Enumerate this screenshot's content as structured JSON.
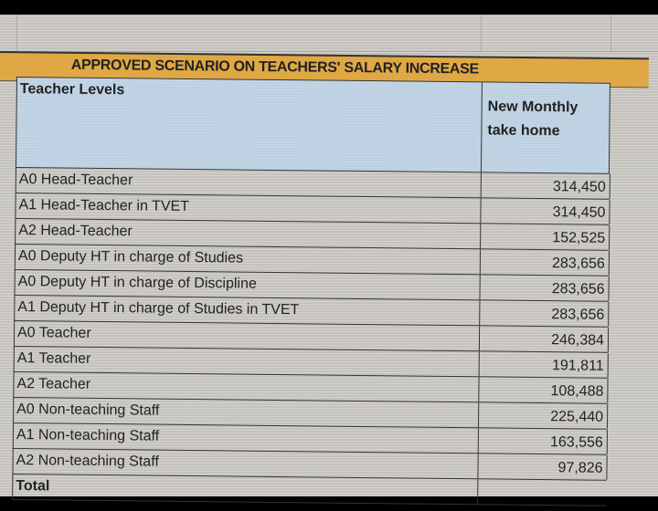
{
  "title": "APPROVED SCENARIO ON TEACHERS' SALARY INCREASE",
  "columns": {
    "level": "Teacher Levels",
    "take_home_line1": "New Monthly",
    "take_home_line2": "take home"
  },
  "rows": [
    {
      "level": "A0 Head-Teacher",
      "value": "314,450"
    },
    {
      "level": "A1 Head-Teacher in TVET",
      "value": "314,450"
    },
    {
      "level": "A2 Head-Teacher",
      "value": "152,525"
    },
    {
      "level": "A0 Deputy HT in charge of Studies",
      "value": "283,656"
    },
    {
      "level": "A0 Deputy HT in charge of Discipline",
      "value": "283,656"
    },
    {
      "level": "A1 Deputy HT in charge of Studies in TVET",
      "value": "283,656"
    },
    {
      "level": "A0 Teacher",
      "value": "246,384"
    },
    {
      "level": "A1 Teacher",
      "value": "191,811"
    },
    {
      "level": "A2 Teacher",
      "value": "108,488"
    },
    {
      "level": "A0 Non-teaching Staff",
      "value": "225,440"
    },
    {
      "level": "A1 Non-teaching Staff",
      "value": "163,556"
    },
    {
      "level": "A2 Non-teaching Staff",
      "value": "97,826"
    }
  ],
  "total_label": "Total",
  "colors": {
    "title_bar": "#e0a844",
    "header_fill": "#bcd0e2"
  }
}
